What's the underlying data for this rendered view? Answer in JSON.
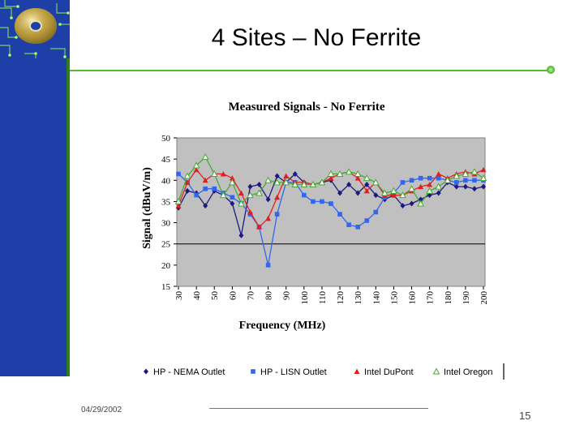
{
  "slide": {
    "title": "4 Sites – No Ferrite",
    "date": "04/29/2002",
    "page_number": "15"
  },
  "colors": {
    "sidebar": "#1f3fa8",
    "accent_green": "#58b832",
    "plot_background": "#c0c0c0",
    "series_1": "#1a1a80",
    "series_2": "#3366ee",
    "series_3": "#e02020",
    "series_4": "#44aa33"
  },
  "chart_data": {
    "type": "line",
    "title": "Measured Signals - No Ferrite",
    "xlabel": "Frequency (MHz)",
    "ylabel": "Signal (dBuV/m)",
    "ylim": [
      15,
      50
    ],
    "yticks": [
      "15",
      "20",
      "25",
      "30",
      "35",
      "40",
      "45",
      "50"
    ],
    "xlim": [
      30,
      200
    ],
    "xticks": [
      "30",
      "40",
      "50",
      "60",
      "70",
      "80",
      "90",
      "100",
      "110",
      "120",
      "130",
      "140",
      "150",
      "160",
      "170",
      "180",
      "190",
      "200"
    ],
    "reference_line": 25,
    "grid": false,
    "legend_position": "bottom",
    "series": [
      {
        "name": "HP - NEMA Outlet",
        "marker": "diamond",
        "x": [
          30,
          35,
          40,
          45,
          50,
          55,
          60,
          65,
          70,
          75,
          80,
          85,
          90,
          95,
          100,
          105,
          110,
          115,
          120,
          125,
          130,
          135,
          140,
          145,
          150,
          155,
          160,
          165,
          170,
          175,
          180,
          185,
          190,
          195,
          200
        ],
        "values": [
          33.5,
          37.5,
          37,
          34,
          37.5,
          36.5,
          34.5,
          27,
          38.5,
          39,
          35.5,
          41,
          39.5,
          41.5,
          39.5,
          39,
          39.5,
          40,
          37,
          39,
          37,
          39,
          36.5,
          35.5,
          36.5,
          34,
          34.5,
          35.5,
          36.5,
          37,
          39.5,
          38.5,
          38.5,
          38,
          38.5
        ]
      },
      {
        "name": "HP - LISN Outlet",
        "marker": "square",
        "x": [
          30,
          35,
          40,
          45,
          50,
          55,
          60,
          65,
          70,
          75,
          80,
          85,
          90,
          95,
          100,
          105,
          110,
          115,
          120,
          125,
          130,
          135,
          140,
          145,
          150,
          155,
          160,
          165,
          170,
          175,
          180,
          185,
          190,
          195,
          200
        ],
        "values": [
          41.5,
          39.5,
          36.5,
          38,
          38,
          37,
          36,
          34.5,
          32,
          29,
          20,
          32,
          39.5,
          39.5,
          36.5,
          35,
          35,
          34.5,
          32,
          29.5,
          29,
          30.5,
          32.5,
          36,
          37,
          39.5,
          40,
          40.5,
          40.5,
          40.5,
          40,
          39.5,
          40,
          40,
          40
        ]
      },
      {
        "name": "Intel DuPont",
        "marker": "triangle-filled",
        "x": [
          30,
          35,
          40,
          45,
          50,
          55,
          60,
          65,
          70,
          75,
          80,
          85,
          90,
          95,
          100,
          105,
          110,
          115,
          120,
          125,
          130,
          135,
          140,
          145,
          150,
          155,
          160,
          165,
          170,
          175,
          180,
          185,
          190,
          195,
          200
        ],
        "values": [
          34,
          39.5,
          42.5,
          40,
          41.5,
          41.5,
          40.5,
          37,
          32.5,
          29,
          31,
          36,
          41,
          39.5,
          39.5,
          39,
          39.5,
          40.5,
          41.5,
          42,
          40.5,
          37.5,
          39.5,
          36.5,
          36.5,
          36.5,
          37.5,
          38.5,
          39,
          41.5,
          40.5,
          41.5,
          42,
          41.5,
          42.5
        ]
      },
      {
        "name": "Intel Oregon",
        "marker": "triangle-open",
        "x": [
          30,
          35,
          40,
          45,
          50,
          55,
          60,
          65,
          70,
          75,
          80,
          85,
          90,
          95,
          100,
          105,
          110,
          115,
          120,
          125,
          130,
          135,
          140,
          145,
          150,
          155,
          160,
          165,
          170,
          175,
          180,
          185,
          190,
          195,
          200
        ],
        "values": [
          35,
          41,
          43.5,
          45.5,
          41.5,
          36.5,
          39.5,
          34.5,
          36.5,
          37,
          40,
          39.5,
          39.5,
          39,
          39,
          39,
          39.5,
          41.5,
          41.5,
          42,
          41.5,
          40.5,
          39.5,
          37,
          37.5,
          36.5,
          38,
          34.5,
          37.5,
          38.5,
          40,
          41,
          41.5,
          42,
          40.5
        ]
      }
    ]
  }
}
